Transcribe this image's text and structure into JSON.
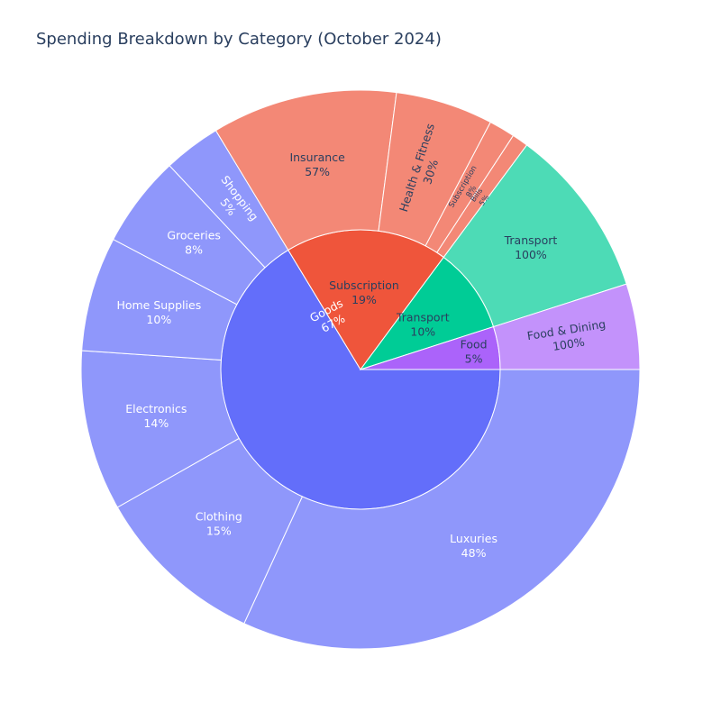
{
  "chart_data": {
    "type": "sunburst",
    "title": "Spending Breakdown by Category (October 2024)",
    "parents": [
      {
        "name": "Goods",
        "value": 67,
        "label": "67%",
        "color": "#636efa",
        "child_color": "#8f97fb",
        "label_color": "#ffffff",
        "children": [
          {
            "name": "Luxuries",
            "value": 48,
            "label": "48%"
          },
          {
            "name": "Clothing",
            "value": 15,
            "label": "15%"
          },
          {
            "name": "Electronics",
            "value": 14,
            "label": "14%"
          },
          {
            "name": "Home Supplies",
            "value": 10,
            "label": "10%"
          },
          {
            "name": "Groceries",
            "value": 8,
            "label": "8%"
          },
          {
            "name": "Shopping",
            "value": 5,
            "label": "5%"
          }
        ]
      },
      {
        "name": "Subscription",
        "value": 19,
        "label": "19%",
        "color": "#ef553b",
        "child_color": "#f38876",
        "label_color": "#2a3f5f",
        "children": [
          {
            "name": "Insurance",
            "value": 57,
            "label": "57%"
          },
          {
            "name": "Health & Fitness",
            "value": 30,
            "label": "30%"
          },
          {
            "name": "Subscription",
            "value": 8,
            "label": "8%"
          },
          {
            "name": "Bills",
            "value": 5,
            "label": "5%"
          }
        ]
      },
      {
        "name": "Transport",
        "value": 10,
        "label": "10%",
        "color": "#00cc96",
        "child_color": "#4ddbb6",
        "label_color": "#2a3f5f",
        "children": [
          {
            "name": "Transport",
            "value": 100,
            "label": "100%"
          }
        ]
      },
      {
        "name": "Food",
        "value": 5,
        "label": "5%",
        "color": "#ab63fa",
        "child_color": "#c392fb",
        "label_color": "#2a3f5f",
        "children": [
          {
            "name": "Food & Dining",
            "value": 100,
            "label": "100%"
          }
        ]
      }
    ]
  }
}
